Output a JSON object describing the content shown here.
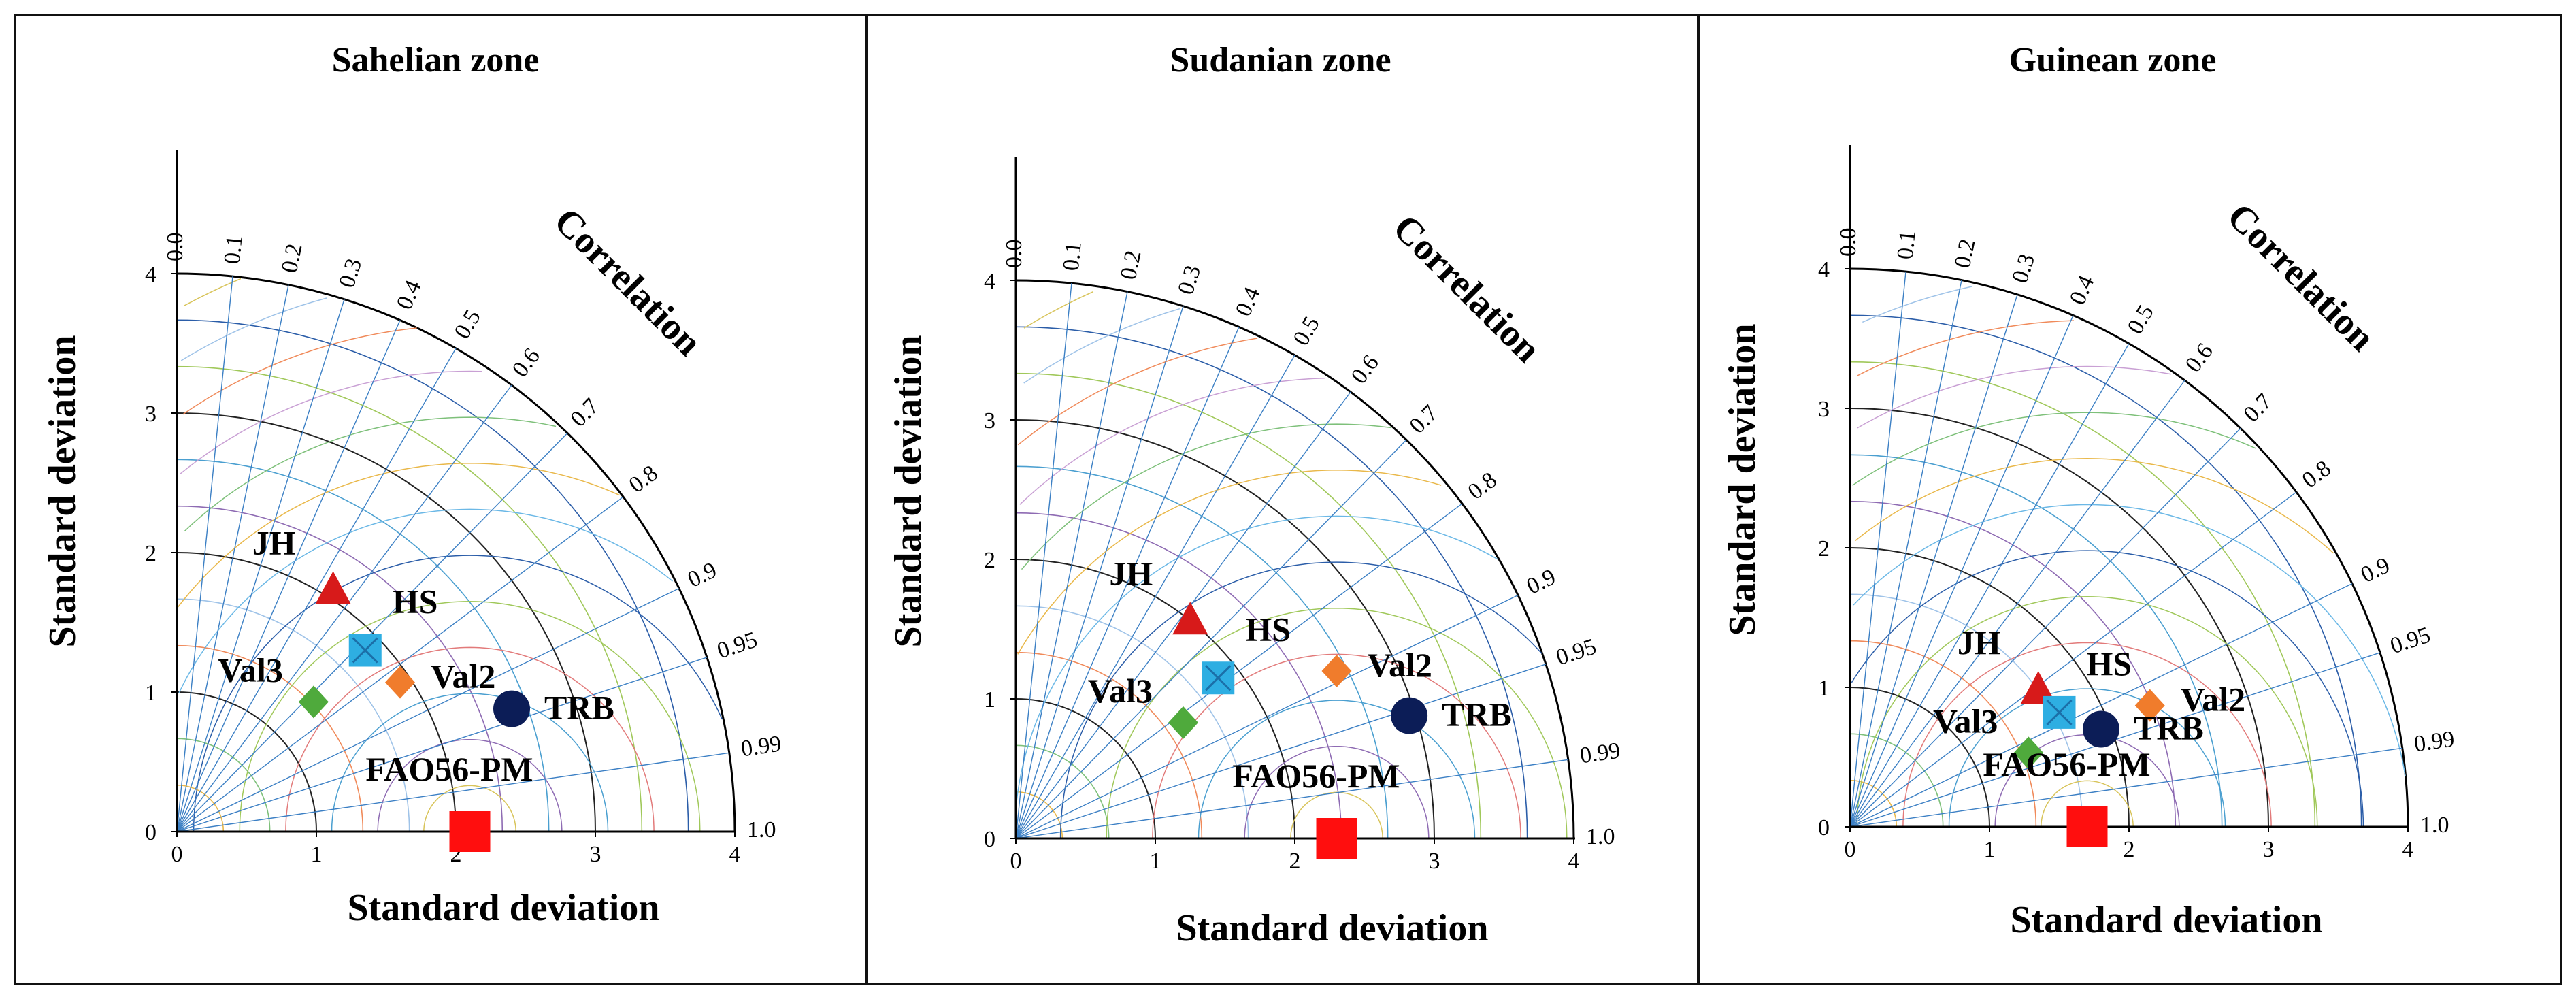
{
  "chart_data": [
    {
      "type": "taylor_diagram",
      "title": "Sahelian zone",
      "xlabel": "Standard deviation",
      "ylabel": "Standard deviation",
      "correlation_label": "Correlation",
      "sd_range": [
        0,
        4
      ],
      "sd_ticks": [
        "0",
        "1",
        "2",
        "3",
        "4"
      ],
      "correlation_ticks": [
        {
          "value": 0.0,
          "label": "0.0"
        },
        {
          "value": 0.1,
          "label": "0.1"
        },
        {
          "value": 0.2,
          "label": "0.2"
        },
        {
          "value": 0.3,
          "label": "0.3"
        },
        {
          "value": 0.4,
          "label": "0.4"
        },
        {
          "value": 0.5,
          "label": "0.5"
        },
        {
          "value": 0.6,
          "label": "0.6"
        },
        {
          "value": 0.7,
          "label": "0.7"
        },
        {
          "value": 0.8,
          "label": "0.8"
        },
        {
          "value": 0.9,
          "label": "0.9"
        },
        {
          "value": 0.95,
          "label": "0.95"
        },
        {
          "value": 0.99,
          "label": "0.99"
        },
        {
          "value": 1.0,
          "label": "1.0"
        }
      ],
      "reference": {
        "name": "FAO56-PM",
        "std": 2.1
      },
      "points": [
        {
          "name": "JH",
          "x": 1.12,
          "y": 1.72
        },
        {
          "name": "HS",
          "x": 1.35,
          "y": 1.3
        },
        {
          "name": "Val2",
          "x": 1.6,
          "y": 1.07
        },
        {
          "name": "Val3",
          "x": 0.98,
          "y": 0.93
        },
        {
          "name": "TRB",
          "x": 2.4,
          "y": 0.88
        },
        {
          "name": "FAO56-PM",
          "x": 2.1,
          "y": 0.0
        }
      ]
    },
    {
      "type": "taylor_diagram",
      "title": "Sudanian zone",
      "xlabel": "Standard deviation",
      "ylabel": "Standard deviation",
      "correlation_label": "Correlation",
      "sd_range": [
        0,
        4
      ],
      "sd_ticks": [
        "0",
        "1",
        "2",
        "3",
        "4"
      ],
      "correlation_ticks": [
        {
          "value": 0.0,
          "label": "0.0"
        },
        {
          "value": 0.1,
          "label": "0.1"
        },
        {
          "value": 0.2,
          "label": "0.2"
        },
        {
          "value": 0.3,
          "label": "0.3"
        },
        {
          "value": 0.4,
          "label": "0.4"
        },
        {
          "value": 0.5,
          "label": "0.5"
        },
        {
          "value": 0.6,
          "label": "0.6"
        },
        {
          "value": 0.7,
          "label": "0.7"
        },
        {
          "value": 0.8,
          "label": "0.8"
        },
        {
          "value": 0.9,
          "label": "0.9"
        },
        {
          "value": 0.95,
          "label": "0.95"
        },
        {
          "value": 0.99,
          "label": "0.99"
        },
        {
          "value": 1.0,
          "label": "1.0"
        }
      ],
      "reference": {
        "name": "FAO56-PM",
        "std": 2.3
      },
      "points": [
        {
          "name": "JH",
          "x": 1.25,
          "y": 1.55
        },
        {
          "name": "HS",
          "x": 1.45,
          "y": 1.15
        },
        {
          "name": "Val2",
          "x": 2.3,
          "y": 1.2
        },
        {
          "name": "Val3",
          "x": 1.2,
          "y": 0.83
        },
        {
          "name": "TRB",
          "x": 2.82,
          "y": 0.88
        },
        {
          "name": "FAO56-PM",
          "x": 2.3,
          "y": 0.0
        }
      ]
    },
    {
      "type": "taylor_diagram",
      "title": "Guinean zone",
      "xlabel": "Standard deviation",
      "ylabel": "Standard deviation",
      "correlation_label": "Correlation",
      "sd_range": [
        0,
        4
      ],
      "sd_ticks": [
        "0",
        "1",
        "2",
        "3",
        "4"
      ],
      "correlation_ticks": [
        {
          "value": 0.0,
          "label": "0.0"
        },
        {
          "value": 0.1,
          "label": "0.1"
        },
        {
          "value": 0.2,
          "label": "0.2"
        },
        {
          "value": 0.3,
          "label": "0.3"
        },
        {
          "value": 0.4,
          "label": "0.4"
        },
        {
          "value": 0.5,
          "label": "0.5"
        },
        {
          "value": 0.6,
          "label": "0.6"
        },
        {
          "value": 0.7,
          "label": "0.7"
        },
        {
          "value": 0.8,
          "label": "0.8"
        },
        {
          "value": 0.9,
          "label": "0.9"
        },
        {
          "value": 0.95,
          "label": "0.95"
        },
        {
          "value": 0.99,
          "label": "0.99"
        },
        {
          "value": 1.0,
          "label": "1.0"
        }
      ],
      "reference": {
        "name": "FAO56-PM",
        "std": 1.7
      },
      "points": [
        {
          "name": "JH",
          "x": 1.35,
          "y": 0.97
        },
        {
          "name": "HS",
          "x": 1.5,
          "y": 0.82
        },
        {
          "name": "Val2",
          "x": 2.15,
          "y": 0.87
        },
        {
          "name": "Val3",
          "x": 1.28,
          "y": 0.53
        },
        {
          "name": "TRB",
          "x": 1.8,
          "y": 0.7
        },
        {
          "name": "FAO56-PM",
          "x": 1.7,
          "y": 0.0
        }
      ]
    }
  ],
  "series_styles": {
    "JH": {
      "marker": "triangle",
      "color": "#d71a1a"
    },
    "HS": {
      "marker": "square-x",
      "color": "#2eaee2"
    },
    "Val2": {
      "marker": "diamond",
      "color": "#f07c2c"
    },
    "Val3": {
      "marker": "diamond",
      "color": "#4faa3c"
    },
    "TRB": {
      "marker": "circle",
      "color": "#0c1d57"
    },
    "FAO56-PM": {
      "marker": "square",
      "color": "#ff0e0e"
    }
  }
}
